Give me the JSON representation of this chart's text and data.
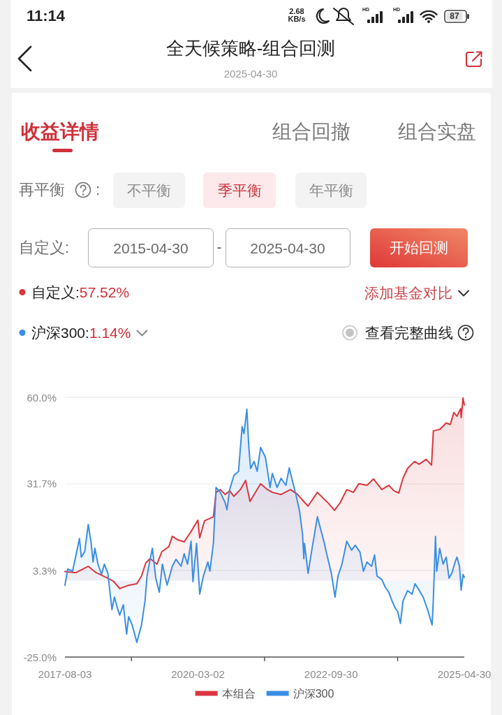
{
  "chart_data": {
    "type": "area",
    "title": "全天候策略-组合回测",
    "subtitle": "2025-04-30",
    "annotations": [
      "11:14",
      "2.68",
      "KB/s",
      "HD",
      "HD",
      "87",
      "收益详情",
      "组合回撤",
      "组合实盘",
      "再平衡",
      ":",
      "不平衡",
      "季平衡",
      "年平衡",
      "自定义:",
      "2015-04-30",
      "-",
      "2025-04-30",
      "开始回测",
      "自定义:",
      "57.52%",
      "添加基金对比",
      "沪深300:",
      "1.14%",
      "查看完整曲线"
    ],
    "xlim": [
      "2017-08-03",
      "2025-04-30"
    ],
    "xticks": [
      "2017-08-03",
      {
        "value": "2018-11-17",
        "label": null
      },
      "2020-03-02",
      {
        "value": "2021-06-16",
        "label": null
      },
      "2022-09-30",
      {
        "value": "2024-01-14",
        "label": null
      },
      "2025-04-30"
    ],
    "ylim": [
      -25,
      60
    ],
    "yticks": [
      {
        "value": -25,
        "label": "-25.0%"
      },
      {
        "value": 3.33,
        "label": "3.3%"
      },
      {
        "value": 31.67,
        "label": "31.7%"
      },
      {
        "value": 60,
        "label": "60.0%"
      }
    ],
    "grid": "y",
    "legend": "bottom",
    "series": [
      {
        "name": "本组合",
        "color": "#d9363e",
        "x": [
          "2017-08-03",
          "2017-10-20",
          "2018-01-15",
          "2018-03-12",
          "2018-06-03",
          "2018-07-10",
          "2018-08-26",
          "2018-10-28",
          "2018-12-25",
          "2019-01-27",
          "2019-02-26",
          "2019-03-29",
          "2019-05-17",
          "2019-06-20",
          "2019-08-08",
          "2019-09-02",
          "2019-10-09",
          "2019-11-25",
          "2020-01-13",
          "2020-03-01",
          "2020-03-14",
          "2020-04-17",
          "2020-06-19",
          "2020-07-08",
          "2020-08-07",
          "2020-09-10",
          "2020-10-12",
          "2020-11-11",
          "2020-12-27",
          "2021-02-02",
          "2021-03-05",
          "2021-04-03",
          "2021-05-19",
          "2021-07-07",
          "2021-08-10",
          "2021-10-11",
          "2021-12-17",
          "2022-02-05",
          "2022-03-21",
          "2022-04-20",
          "2022-06-25",
          "2022-08-14",
          "2022-09-12",
          "2022-10-24",
          "2022-12-03",
          "2023-01-19",
          "2023-03-07",
          "2023-04-14",
          "2023-06-11",
          "2023-07-27",
          "2023-09-24",
          "2023-11-12",
          "2023-12-19",
          "2024-01-22",
          "2024-02-21",
          "2024-03-24",
          "2024-05-12",
          "2024-06-14",
          "2024-08-03",
          "2024-09-10",
          "2024-09-23",
          "2024-11-07",
          "2024-12-23",
          "2025-01-21",
          "2025-02-15",
          "2025-03-09",
          "2025-04-04",
          "2025-04-08",
          "2025-04-21",
          "2025-04-30"
        ],
        "values": [
          3.0,
          2.6,
          4.7,
          2.6,
          0.8,
          -0.1,
          -2.6,
          -1.5,
          -1.0,
          1.5,
          5.8,
          7.2,
          5.4,
          9.5,
          11.1,
          14.5,
          13.4,
          12.7,
          16.1,
          19.8,
          14.0,
          19.6,
          20.9,
          28.9,
          29.8,
          28.2,
          29.4,
          27.6,
          29.8,
          32.8,
          25.9,
          28.2,
          31.7,
          29.8,
          28.9,
          28.2,
          29.8,
          28.2,
          25.9,
          24.4,
          28.9,
          26.6,
          25.3,
          23.0,
          25.5,
          29.8,
          28.9,
          31.7,
          31.2,
          33.3,
          29.8,
          31.2,
          29.4,
          28.7,
          33.5,
          36.7,
          39.0,
          38.1,
          39.7,
          37.8,
          49.0,
          49.5,
          51.6,
          51.1,
          55.0,
          53.8,
          56.3,
          53.4,
          59.8,
          57.5
        ]
      },
      {
        "name": "沪深300",
        "color": "#3a8ee6",
        "x": [
          "2017-08-03",
          "2017-08-10",
          "2017-08-23",
          "2017-09-26",
          "2017-11-14",
          "2017-11-27",
          "2017-12-21",
          "2018-01-15",
          "2018-02-05",
          "2018-02-18",
          "2018-03-03",
          "2018-03-25",
          "2018-04-19",
          "2018-05-09",
          "2018-06-03",
          "2018-06-16",
          "2018-07-02",
          "2018-07-19",
          "2018-08-13",
          "2018-08-26",
          "2018-09-20",
          "2018-10-14",
          "2018-10-28",
          "2018-11-22",
          "2018-12-25",
          "2019-01-27",
          "2019-02-21",
          "2019-03-07",
          "2019-03-29",
          "2019-04-14",
          "2019-05-08",
          "2019-06-02",
          "2019-06-24",
          "2019-07-27",
          "2019-09-02",
          "2019-09-28",
          "2019-11-03",
          "2019-11-25",
          "2019-12-19",
          "2020-01-13",
          "2020-01-26",
          "2020-02-21",
          "2020-03-14",
          "2020-04-09",
          "2020-05-11",
          "2020-05-25",
          "2020-06-19",
          "2020-07-08",
          "2020-08-07",
          "2020-09-10",
          "2020-09-23",
          "2020-10-12",
          "2020-11-11",
          "2020-12-14",
          "2021-01-08",
          "2021-01-21",
          "2021-02-11",
          "2021-02-24",
          "2021-03-09",
          "2021-04-03",
          "2021-04-25",
          "2021-05-19",
          "2021-06-22",
          "2021-07-25",
          "2021-08-10",
          "2021-09-13",
          "2021-10-11",
          "2021-11-14",
          "2021-12-08",
          "2022-01-02",
          "2022-01-24",
          "2022-02-18",
          "2022-03-12",
          "2022-03-21",
          "2022-03-26",
          "2022-04-20",
          "2022-05-14",
          "2022-06-25",
          "2022-08-14",
          "2022-08-27",
          "2022-10-02",
          "2022-10-28",
          "2022-11-18",
          "2022-12-16",
          "2023-01-19",
          "2023-02-22",
          "2023-03-20",
          "2023-04-23",
          "2023-05-17",
          "2023-06-11",
          "2023-07-14",
          "2023-08-04",
          "2023-08-21",
          "2023-09-24",
          "2023-10-18",
          "2023-11-12",
          "2023-12-06",
          "2023-12-28",
          "2024-01-14",
          "2024-02-03",
          "2024-02-21",
          "2024-03-24",
          "2024-04-26",
          "2024-05-16",
          "2024-06-14",
          "2024-07-13",
          "2024-08-16",
          "2024-09-14",
          "2024-09-23",
          "2024-10-08",
          "2024-10-17",
          "2024-11-07",
          "2024-12-01",
          "2024-12-23",
          "2025-01-12",
          "2025-02-02",
          "2025-02-24",
          "2025-03-09",
          "2025-03-27",
          "2025-04-08",
          "2025-04-21",
          "2025-04-30"
        ],
        "values": [
          -1.5,
          0.4,
          3.8,
          3.1,
          13.8,
          7.7,
          9.5,
          18.4,
          12.2,
          6.1,
          10.6,
          5.4,
          2.0,
          5.4,
          2.4,
          -3.1,
          -9.5,
          -5.4,
          -9.5,
          -11.3,
          -7.9,
          -17.5,
          -11.8,
          -14.5,
          -20.2,
          -14.5,
          -6.7,
          1.5,
          7.0,
          10.6,
          0.8,
          -3.8,
          5.4,
          -1.5,
          4.7,
          7.0,
          4.7,
          8.8,
          5.4,
          12.9,
          -0.3,
          12.2,
          -4.4,
          1.5,
          6.1,
          3.1,
          12.2,
          30.5,
          28.9,
          25.5,
          23.2,
          29.8,
          34.4,
          35.8,
          50.4,
          48.1,
          56.1,
          44.2,
          36.7,
          39.0,
          35.8,
          43.6,
          40.4,
          30.5,
          35.1,
          30.5,
          33.5,
          31.2,
          36.9,
          32.1,
          28.2,
          23.0,
          15.2,
          7.2,
          12.2,
          2.4,
          9.3,
          20.9,
          12.2,
          9.3,
          2.4,
          -5.4,
          1.5,
          5.4,
          12.9,
          10.0,
          11.6,
          9.3,
          3.1,
          6.1,
          4.7,
          8.4,
          1.5,
          0.4,
          -2.1,
          -3.8,
          -6.7,
          -9.0,
          -10.1,
          -14.0,
          -6.7,
          -3.3,
          -4.4,
          -1.0,
          -3.1,
          -5.4,
          -9.9,
          -14.5,
          -6.0,
          14.5,
          3.1,
          10.6,
          5.4,
          7.7,
          0.8,
          2.6,
          6.1,
          7.7,
          4.7,
          -3.1,
          2.0,
          1.1
        ]
      }
    ]
  }
}
